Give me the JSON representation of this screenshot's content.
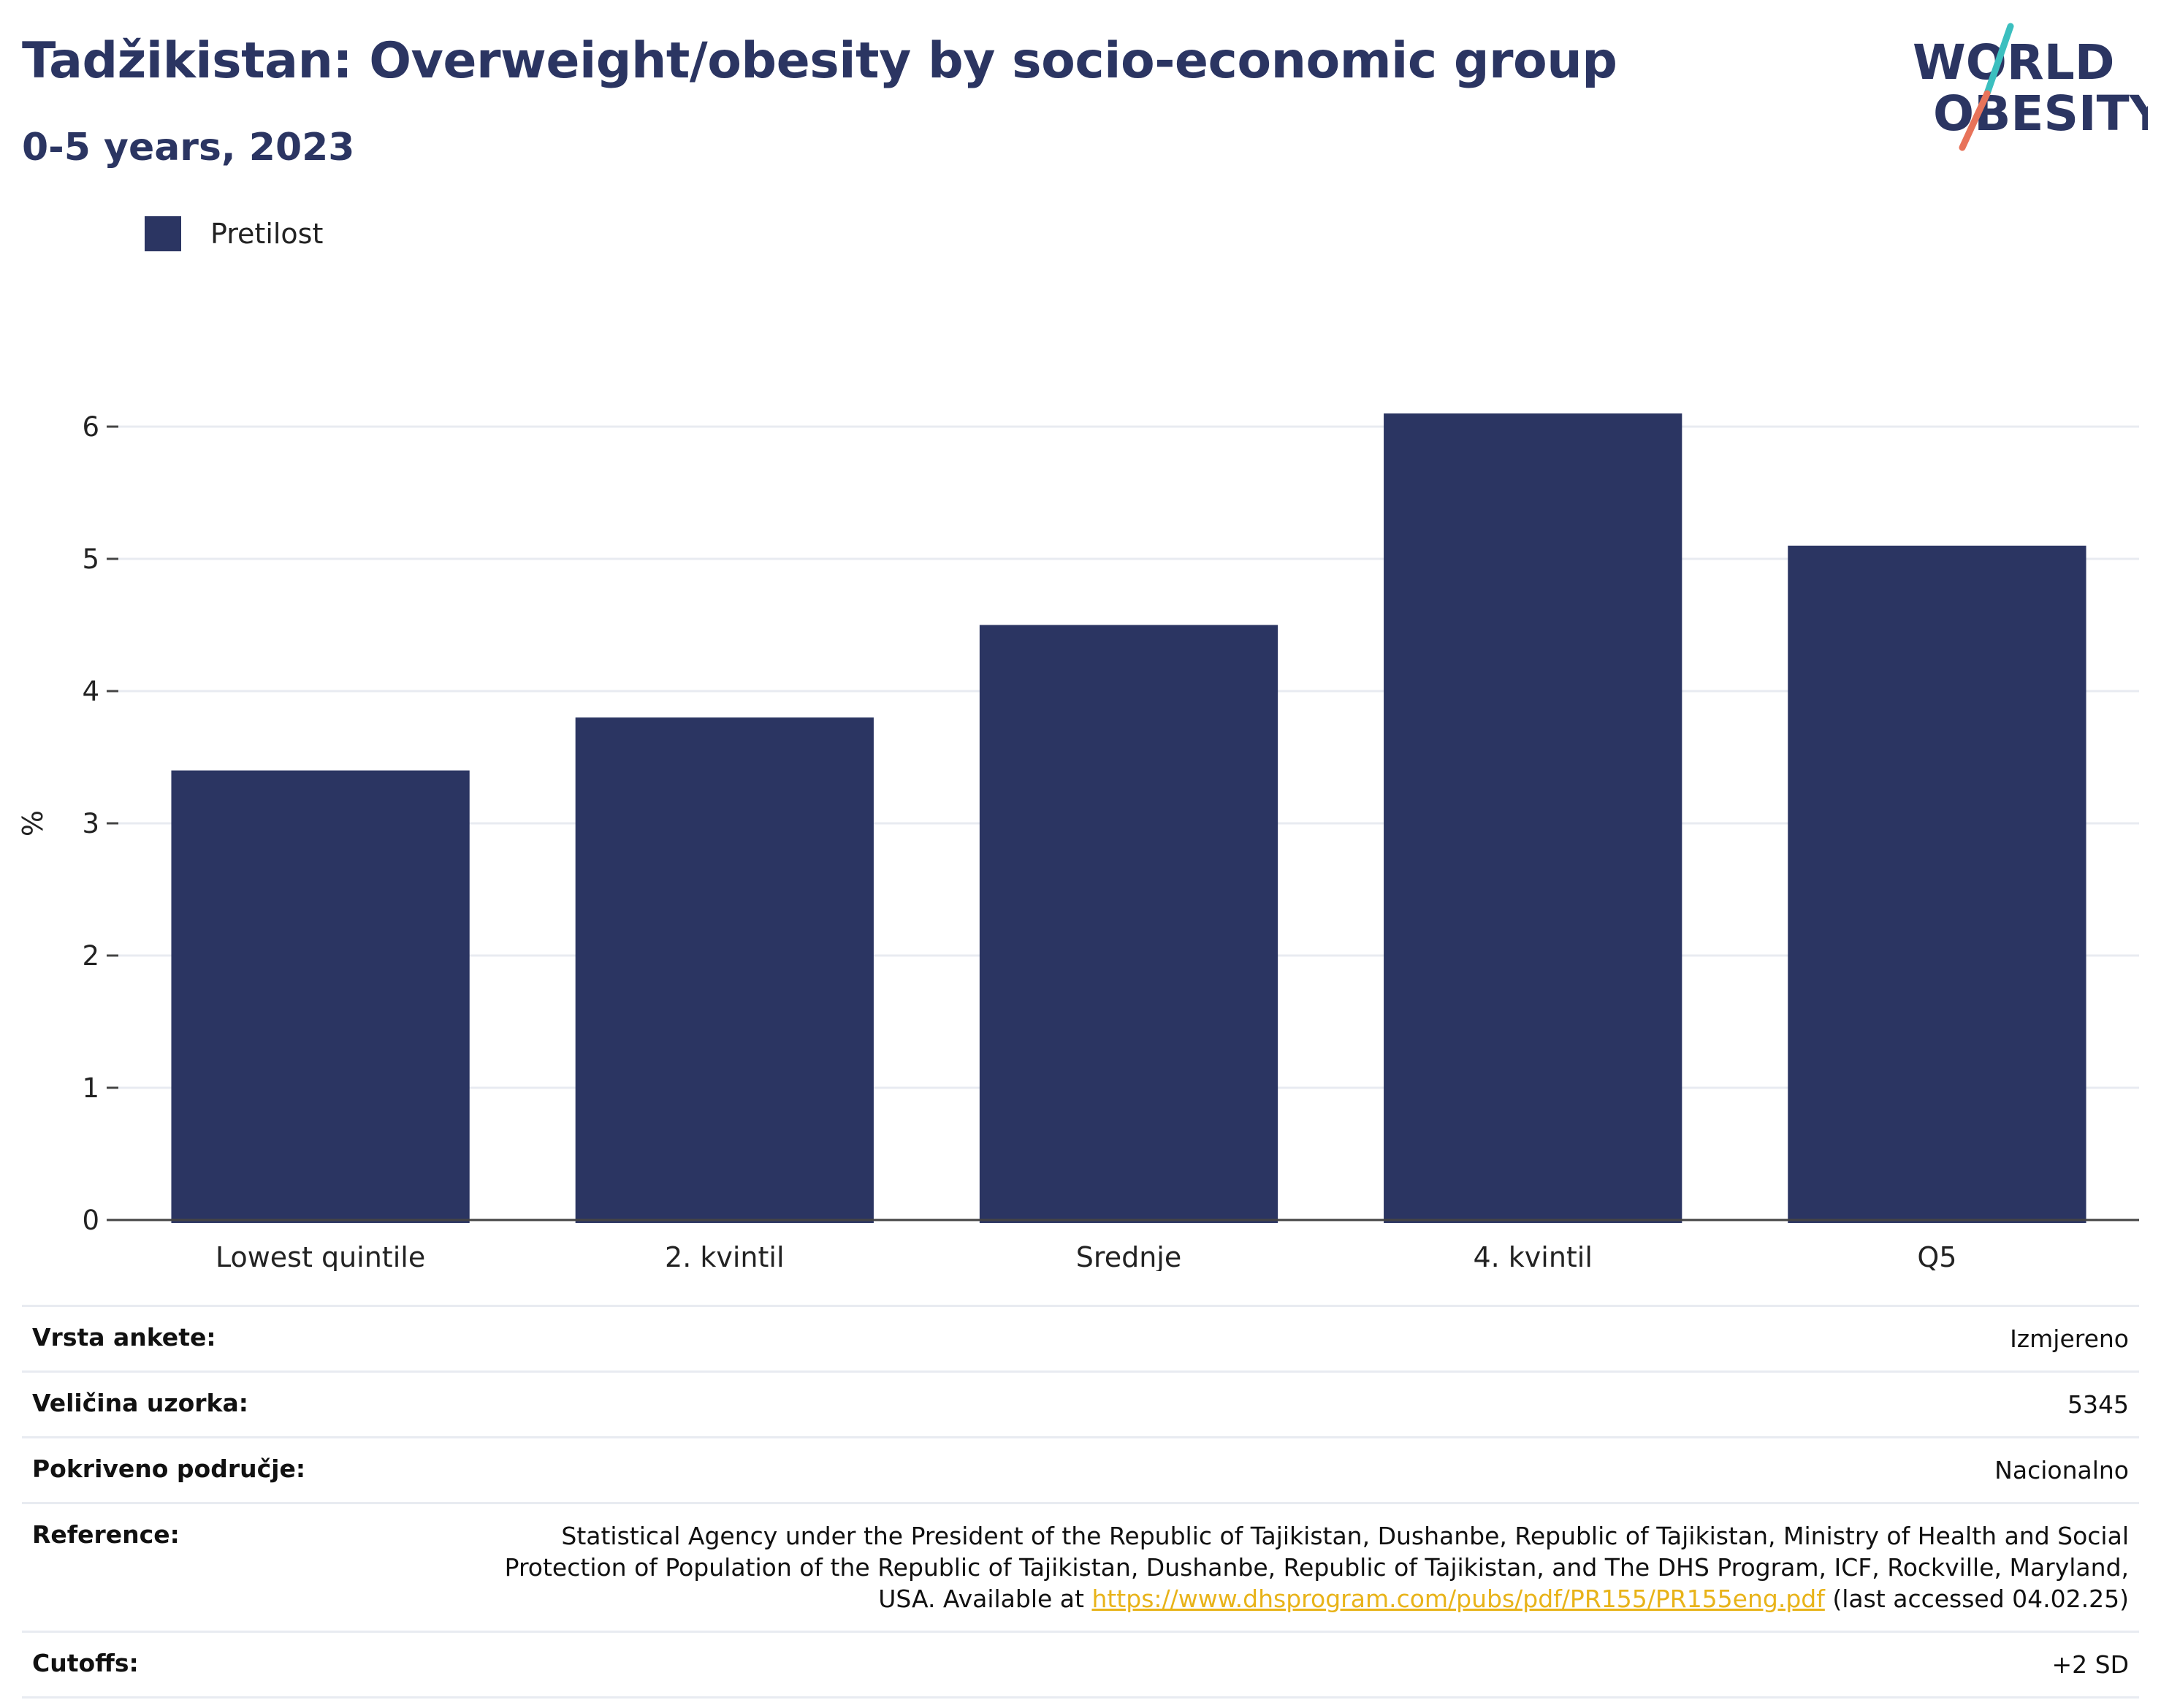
{
  "header": {
    "title": "Tadžikistan: Overweight/obesity by socio-economic group",
    "subtitle": "0-5 years, 2023"
  },
  "logo": {
    "line1": "WORLD",
    "line2": "OBESITY",
    "colors": {
      "text": "#2b3562",
      "teal": "#3bbfbf",
      "coral": "#e8735a"
    }
  },
  "colors": {
    "bar": "#2b3562",
    "grid": "#e8ebf1",
    "axis": "#444444"
  },
  "chart_data": {
    "type": "bar",
    "categories": [
      "Lowest quintile",
      "2. kvintil",
      "Srednje",
      "4. kvintil",
      "Q5"
    ],
    "series": [
      {
        "name": "Pretilost",
        "values": [
          3.4,
          3.8,
          4.5,
          6.1,
          5.1
        ]
      }
    ],
    "ylabel": "%",
    "ylim": [
      0,
      7
    ],
    "yticks": [
      0,
      1,
      2,
      3,
      4,
      5,
      6
    ],
    "grid": true,
    "legend_position": "top-left"
  },
  "meta": {
    "rows": [
      {
        "label": "Vrsta ankete:",
        "value": "Izmjereno"
      },
      {
        "label": "Veličina uzorka:",
        "value": "5345"
      },
      {
        "label": "Pokriveno područje:",
        "value": "Nacionalno"
      },
      {
        "label": "Reference:",
        "value_before": "Statistical Agency under the President of the Republic of Tajikistan, Dushanbe, Republic of Tajikistan, Ministry of Health and Social Protection of Population of the Republic of Tajikistan, Dushanbe, Republic of Tajikistan, and The DHS Program, ICF, Rockville, Maryland, USA. Available at",
        "link": "https://www.dhsprogram.com/pubs/pdf/PR155/PR155eng.pdf",
        "value_after": "(last accessed 04.02.25)"
      },
      {
        "label": "Cutoffs:",
        "value": "+2 SD"
      }
    ]
  }
}
